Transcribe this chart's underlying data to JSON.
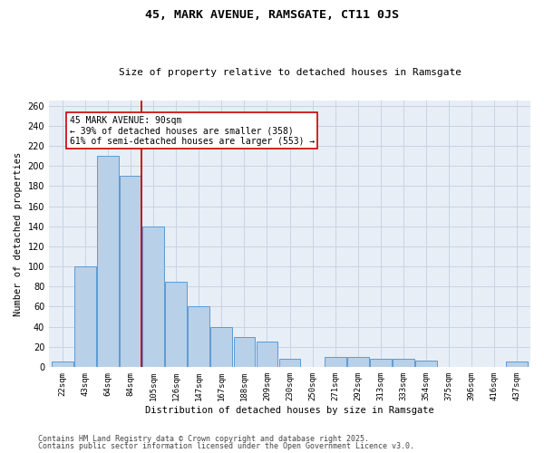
{
  "title": "45, MARK AVENUE, RAMSGATE, CT11 0JS",
  "subtitle": "Size of property relative to detached houses in Ramsgate",
  "xlabel": "Distribution of detached houses by size in Ramsgate",
  "ylabel": "Number of detached properties",
  "categories": [
    "22sqm",
    "43sqm",
    "64sqm",
    "84sqm",
    "105sqm",
    "126sqm",
    "147sqm",
    "167sqm",
    "188sqm",
    "209sqm",
    "230sqm",
    "250sqm",
    "271sqm",
    "292sqm",
    "313sqm",
    "333sqm",
    "354sqm",
    "375sqm",
    "396sqm",
    "416sqm",
    "437sqm"
  ],
  "values": [
    5,
    100,
    210,
    190,
    140,
    85,
    60,
    40,
    30,
    25,
    8,
    0,
    10,
    10,
    8,
    8,
    6,
    0,
    0,
    0,
    5
  ],
  "bar_color": "#b8d0e8",
  "bar_edge_color": "#5b9bd5",
  "property_line_x": 3.47,
  "property_label": "45 MARK AVENUE: 90sqm",
  "pct_smaller": "39% of detached houses are smaller (358)",
  "pct_larger": "61% of semi-detached houses are larger (553)",
  "annotation_box_color": "#cc0000",
  "grid_color": "#c8d4e4",
  "bg_color": "#e8eef6",
  "footer_line1": "Contains HM Land Registry data © Crown copyright and database right 2025.",
  "footer_line2": "Contains public sector information licensed under the Open Government Licence v3.0.",
  "ylim": [
    0,
    265
  ],
  "yticks": [
    0,
    20,
    40,
    60,
    80,
    100,
    120,
    140,
    160,
    180,
    200,
    220,
    240,
    260
  ]
}
